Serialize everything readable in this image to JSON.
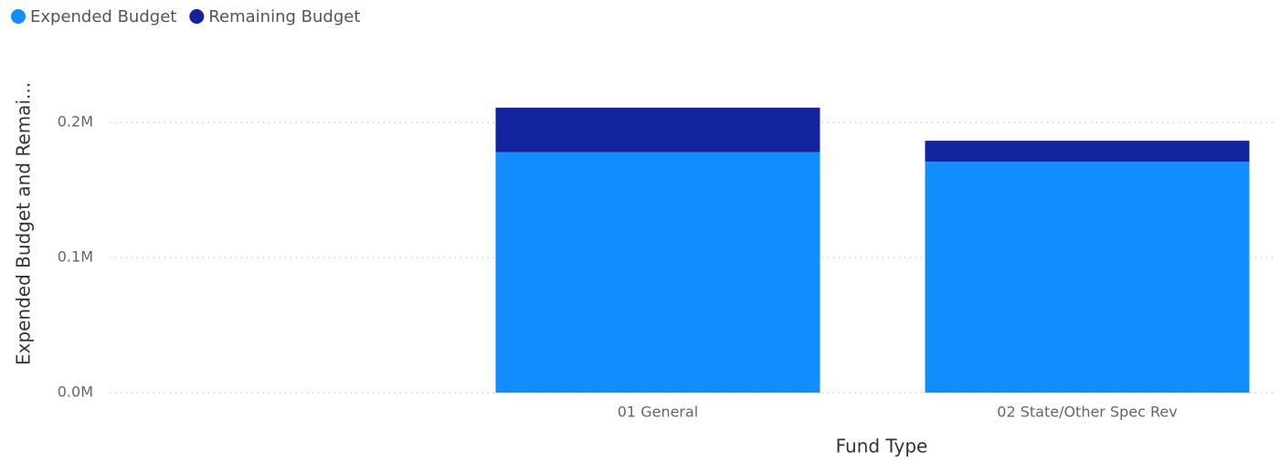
{
  "chart_data": {
    "type": "stacked_bar",
    "ylabel": "Expended Budget and Remai...",
    "xlabel": "Fund Type",
    "categories": [
      null,
      "01 General",
      "02 State/Other Spec Rev"
    ],
    "series": [
      {
        "name": "Expended Budget",
        "color": "#118DFF",
        "values": [
          null,
          178000,
          171000
        ]
      },
      {
        "name": "Remaining Budget",
        "color": "#12239E",
        "values": [
          null,
          33000,
          15500
        ]
      }
    ],
    "ylim": [
      0,
      240000
    ],
    "yticks": [
      {
        "value": 0,
        "label": "0.0M"
      },
      {
        "value": 100000,
        "label": "0.1M"
      },
      {
        "value": 200000,
        "label": "0.2M"
      }
    ],
    "grid": true,
    "legend": "top-left"
  }
}
